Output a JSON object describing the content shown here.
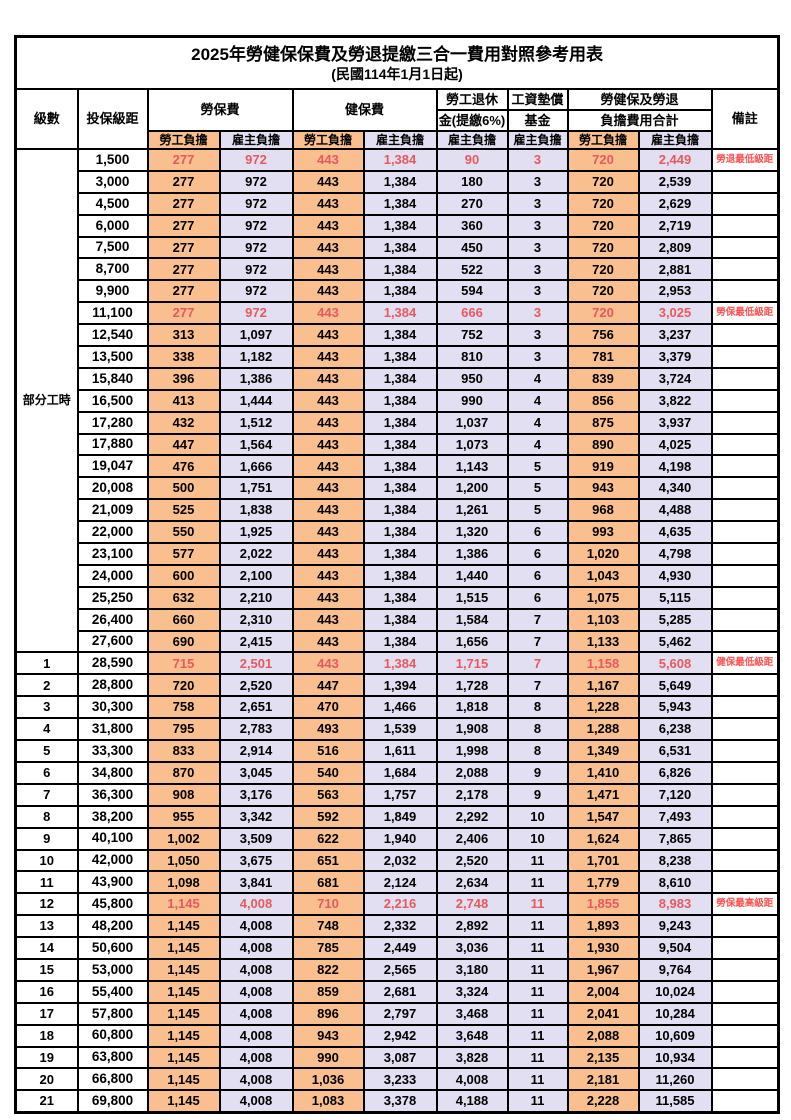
{
  "title": "2025年勞健保保費及勞退提繳三合一費用對照參考用表",
  "subtitle": "(民國114年1月1日起)",
  "header": {
    "level": "級數",
    "bracket": "投保級距",
    "labor_insurance": "勞保費",
    "health_insurance": "健保費",
    "pension_line1": "勞工退休",
    "pension_line2": "金(提繳6%)",
    "wage_fund_line1": "工資墊償",
    "wage_fund_line2": "基金",
    "total_line1": "勞健保及勞退",
    "total_line2": "負擔費用合計",
    "remark": "備註",
    "employee_share": "勞工負擔",
    "employer_share": "雇主負擔"
  },
  "part_time_label": "部分工時",
  "part_time_rowspan": 23,
  "columns": [
    "level",
    "bracket",
    "labor_emp",
    "labor_er",
    "health_emp",
    "health_er",
    "pension_er",
    "fund_er",
    "total_emp",
    "total_er",
    "remark",
    "is_red"
  ],
  "rows": [
    [
      "",
      "1,500",
      "277",
      "972",
      "443",
      "1,384",
      "90",
      "3",
      "720",
      "2,449",
      "勞退最低級距",
      true
    ],
    [
      "",
      "3,000",
      "277",
      "972",
      "443",
      "1,384",
      "180",
      "3",
      "720",
      "2,539",
      "",
      false
    ],
    [
      "",
      "4,500",
      "277",
      "972",
      "443",
      "1,384",
      "270",
      "3",
      "720",
      "2,629",
      "",
      false
    ],
    [
      "",
      "6,000",
      "277",
      "972",
      "443",
      "1,384",
      "360",
      "3",
      "720",
      "2,719",
      "",
      false
    ],
    [
      "",
      "7,500",
      "277",
      "972",
      "443",
      "1,384",
      "450",
      "3",
      "720",
      "2,809",
      "",
      false
    ],
    [
      "",
      "8,700",
      "277",
      "972",
      "443",
      "1,384",
      "522",
      "3",
      "720",
      "2,881",
      "",
      false
    ],
    [
      "",
      "9,900",
      "277",
      "972",
      "443",
      "1,384",
      "594",
      "3",
      "720",
      "2,953",
      "",
      false
    ],
    [
      "",
      "11,100",
      "277",
      "972",
      "443",
      "1,384",
      "666",
      "3",
      "720",
      "3,025",
      "勞保最低級距",
      true
    ],
    [
      "",
      "12,540",
      "313",
      "1,097",
      "443",
      "1,384",
      "752",
      "3",
      "756",
      "3,237",
      "",
      false
    ],
    [
      "",
      "13,500",
      "338",
      "1,182",
      "443",
      "1,384",
      "810",
      "3",
      "781",
      "3,379",
      "",
      false
    ],
    [
      "",
      "15,840",
      "396",
      "1,386",
      "443",
      "1,384",
      "950",
      "4",
      "839",
      "3,724",
      "",
      false
    ],
    [
      "",
      "16,500",
      "413",
      "1,444",
      "443",
      "1,384",
      "990",
      "4",
      "856",
      "3,822",
      "",
      false
    ],
    [
      "",
      "17,280",
      "432",
      "1,512",
      "443",
      "1,384",
      "1,037",
      "4",
      "875",
      "3,937",
      "",
      false
    ],
    [
      "",
      "17,880",
      "447",
      "1,564",
      "443",
      "1,384",
      "1,073",
      "4",
      "890",
      "4,025",
      "",
      false
    ],
    [
      "",
      "19,047",
      "476",
      "1,666",
      "443",
      "1,384",
      "1,143",
      "5",
      "919",
      "4,198",
      "",
      false
    ],
    [
      "",
      "20,008",
      "500",
      "1,751",
      "443",
      "1,384",
      "1,200",
      "5",
      "943",
      "4,340",
      "",
      false
    ],
    [
      "",
      "21,009",
      "525",
      "1,838",
      "443",
      "1,384",
      "1,261",
      "5",
      "968",
      "4,488",
      "",
      false
    ],
    [
      "",
      "22,000",
      "550",
      "1,925",
      "443",
      "1,384",
      "1,320",
      "6",
      "993",
      "4,635",
      "",
      false
    ],
    [
      "",
      "23,100",
      "577",
      "2,022",
      "443",
      "1,384",
      "1,386",
      "6",
      "1,020",
      "4,798",
      "",
      false
    ],
    [
      "",
      "24,000",
      "600",
      "2,100",
      "443",
      "1,384",
      "1,440",
      "6",
      "1,043",
      "4,930",
      "",
      false
    ],
    [
      "",
      "25,250",
      "632",
      "2,210",
      "443",
      "1,384",
      "1,515",
      "6",
      "1,075",
      "5,115",
      "",
      false
    ],
    [
      "",
      "26,400",
      "660",
      "2,310",
      "443",
      "1,384",
      "1,584",
      "7",
      "1,103",
      "5,285",
      "",
      false
    ],
    [
      "",
      "27,600",
      "690",
      "2,415",
      "443",
      "1,384",
      "1,656",
      "7",
      "1,133",
      "5,462",
      "",
      false
    ],
    [
      "1",
      "28,590",
      "715",
      "2,501",
      "443",
      "1,384",
      "1,715",
      "7",
      "1,158",
      "5,608",
      "健保最低級距",
      true
    ],
    [
      "2",
      "28,800",
      "720",
      "2,520",
      "447",
      "1,394",
      "1,728",
      "7",
      "1,167",
      "5,649",
      "",
      false
    ],
    [
      "3",
      "30,300",
      "758",
      "2,651",
      "470",
      "1,466",
      "1,818",
      "8",
      "1,228",
      "5,943",
      "",
      false
    ],
    [
      "4",
      "31,800",
      "795",
      "2,783",
      "493",
      "1,539",
      "1,908",
      "8",
      "1,288",
      "6,238",
      "",
      false
    ],
    [
      "5",
      "33,300",
      "833",
      "2,914",
      "516",
      "1,611",
      "1,998",
      "8",
      "1,349",
      "6,531",
      "",
      false
    ],
    [
      "6",
      "34,800",
      "870",
      "3,045",
      "540",
      "1,684",
      "2,088",
      "9",
      "1,410",
      "6,826",
      "",
      false
    ],
    [
      "7",
      "36,300",
      "908",
      "3,176",
      "563",
      "1,757",
      "2,178",
      "9",
      "1,471",
      "7,120",
      "",
      false
    ],
    [
      "8",
      "38,200",
      "955",
      "3,342",
      "592",
      "1,849",
      "2,292",
      "10",
      "1,547",
      "7,493",
      "",
      false
    ],
    [
      "9",
      "40,100",
      "1,002",
      "3,509",
      "622",
      "1,940",
      "2,406",
      "10",
      "1,624",
      "7,865",
      "",
      false
    ],
    [
      "10",
      "42,000",
      "1,050",
      "3,675",
      "651",
      "2,032",
      "2,520",
      "11",
      "1,701",
      "8,238",
      "",
      false
    ],
    [
      "11",
      "43,900",
      "1,098",
      "3,841",
      "681",
      "2,124",
      "2,634",
      "11",
      "1,779",
      "8,610",
      "",
      false
    ],
    [
      "12",
      "45,800",
      "1,145",
      "4,008",
      "710",
      "2,216",
      "2,748",
      "11",
      "1,855",
      "8,983",
      "勞保最高級距",
      true
    ],
    [
      "13",
      "48,200",
      "1,145",
      "4,008",
      "748",
      "2,332",
      "2,892",
      "11",
      "1,893",
      "9,243",
      "",
      false
    ],
    [
      "14",
      "50,600",
      "1,145",
      "4,008",
      "785",
      "2,449",
      "3,036",
      "11",
      "1,930",
      "9,504",
      "",
      false
    ],
    [
      "15",
      "53,000",
      "1,145",
      "4,008",
      "822",
      "2,565",
      "3,180",
      "11",
      "1,967",
      "9,764",
      "",
      false
    ],
    [
      "16",
      "55,400",
      "1,145",
      "4,008",
      "859",
      "2,681",
      "3,324",
      "11",
      "2,004",
      "10,024",
      "",
      false
    ],
    [
      "17",
      "57,800",
      "1,145",
      "4,008",
      "896",
      "2,797",
      "3,468",
      "11",
      "2,041",
      "10,284",
      "",
      false
    ],
    [
      "18",
      "60,800",
      "1,145",
      "4,008",
      "943",
      "2,942",
      "3,648",
      "11",
      "2,088",
      "10,609",
      "",
      false
    ],
    [
      "19",
      "63,800",
      "1,145",
      "4,008",
      "990",
      "3,087",
      "3,828",
      "11",
      "2,135",
      "10,934",
      "",
      false
    ],
    [
      "20",
      "66,800",
      "1,145",
      "4,008",
      "1,036",
      "3,233",
      "4,008",
      "11",
      "2,181",
      "11,260",
      "",
      false
    ],
    [
      "21",
      "69,800",
      "1,145",
      "4,008",
      "1,083",
      "3,378",
      "4,188",
      "11",
      "2,228",
      "11,585",
      "",
      false
    ]
  ],
  "colors": {
    "employee_bg": "#FABF8F",
    "employer_bg": "#E2DFF2",
    "highlight_text": "#E6595E",
    "remark_text": "#FF5252",
    "border_color": "#000000",
    "page_bg": "#FFFFFF"
  }
}
